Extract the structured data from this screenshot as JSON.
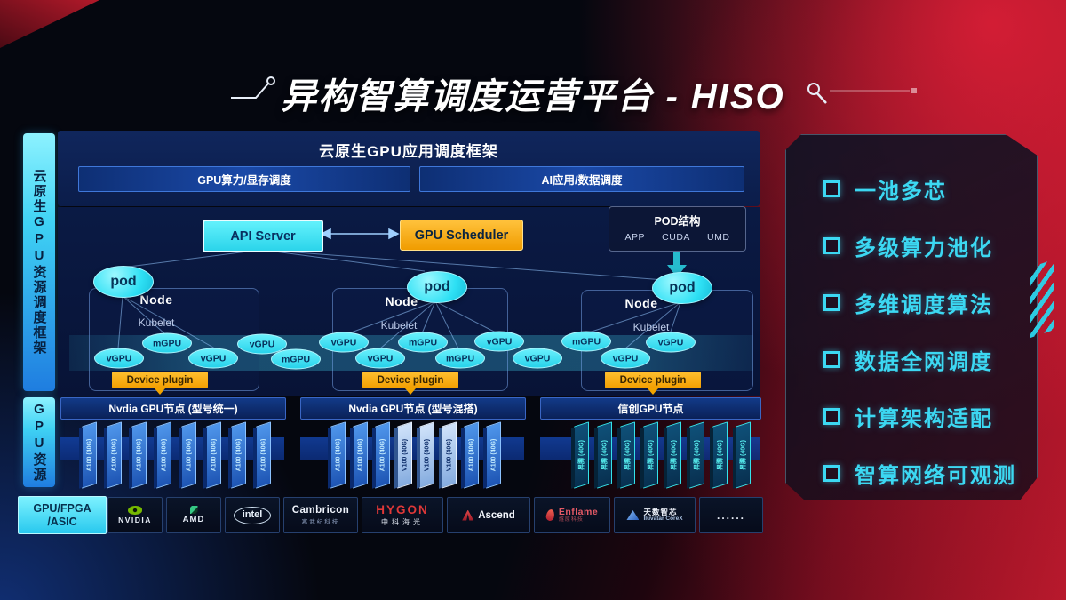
{
  "title": "异构智算调度运营平台 - HISO",
  "sidebar": {
    "top_label": "云原生GPU资源调度框架",
    "bottom_label": "GPU资源"
  },
  "framework": {
    "header": "云原生GPU应用调度框架",
    "bars": [
      "GPU算力/显存调度",
      "AI应用/数据调度"
    ],
    "api_server_label": "API Server",
    "gpu_scheduler_label": "GPU Scheduler",
    "pod_struct": {
      "title": "POD结构",
      "columns": [
        "APP",
        "CUDA",
        "UMD"
      ]
    },
    "node_label": "Node",
    "kubelet_label": "Kubelet",
    "pod_label": "pod",
    "device_plugin_label": "Device plugin",
    "gpu_units": [
      "vGPU",
      "mGPU",
      "vGPU",
      "vGPU",
      "mGPU",
      "vGPU",
      "vGPU",
      "mGPU",
      "mGPU",
      "vGPU",
      "vGPU",
      "mGPU",
      "vGPU",
      "vGPU"
    ]
  },
  "gpu_rows": [
    {
      "label": "Nvdia GPU节点 (型号统一)",
      "cards": [
        {
          "label": "A100 (40G)",
          "variant": "a100"
        },
        {
          "label": "A100 (40G)",
          "variant": "a100"
        },
        {
          "label": "A100 (40G)",
          "variant": "a100"
        },
        {
          "label": "A100 (40G)",
          "variant": "a100"
        },
        {
          "label": "A100 (40G)",
          "variant": "a100"
        },
        {
          "label": "A100 (40G)",
          "variant": "a100"
        },
        {
          "label": "A100 (40G)",
          "variant": "a100"
        },
        {
          "label": "A100 (40G)",
          "variant": "a100"
        }
      ]
    },
    {
      "label": "Nvdia GPU节点 (型号混搭)",
      "cards": [
        {
          "label": "A100 (40G)",
          "variant": "a100"
        },
        {
          "label": "A100 (40G)",
          "variant": "a100"
        },
        {
          "label": "A100 (40G)",
          "variant": "a100"
        },
        {
          "label": "V100 (40G)",
          "variant": "v100"
        },
        {
          "label": "V100 (40G)",
          "variant": "v100"
        },
        {
          "label": "V100 (40G)",
          "variant": "v100"
        },
        {
          "label": "A100 (40G)",
          "variant": "a100"
        },
        {
          "label": "A100 (40G)",
          "variant": "a100"
        }
      ]
    },
    {
      "label": "信创GPU节点",
      "cards": [
        {
          "label": "昇腾 (40G)",
          "variant": "xc"
        },
        {
          "label": "昇腾 (40G)",
          "variant": "xc"
        },
        {
          "label": "昇腾 (40G)",
          "variant": "xc"
        },
        {
          "label": "昇腾 (40G)",
          "variant": "xc"
        },
        {
          "label": "昇腾 (40G)",
          "variant": "xc"
        },
        {
          "label": "昇腾 (40G)",
          "variant": "xc"
        },
        {
          "label": "昇腾 (40G)",
          "variant": "xc"
        },
        {
          "label": "昇腾 (40G)",
          "variant": "xc"
        }
      ]
    }
  ],
  "vendors": {
    "first": [
      "GPU/FPGA",
      "/ASIC"
    ],
    "logos": [
      {
        "id": "nvidia",
        "text": "NVIDIA"
      },
      {
        "id": "amd",
        "text": "AMD"
      },
      {
        "id": "intel",
        "text": "intel"
      },
      {
        "id": "cambricon",
        "text": "Cambricon",
        "sub": "寒武纪科技"
      },
      {
        "id": "hygon",
        "text": "HYGON",
        "sub": "中科海光"
      },
      {
        "id": "ascend",
        "text": "Ascend"
      },
      {
        "id": "enflame",
        "text": "Enflame",
        "sub": "燧原科技"
      },
      {
        "id": "iluvatar",
        "text": "天数智芯",
        "sub": "Iluvatar CoreX"
      },
      {
        "id": "more",
        "text": "......"
      }
    ]
  },
  "features": {
    "items": [
      "一池多芯",
      "多级算力池化",
      "多维调度算法",
      "数据全网调度",
      "计算架构适配",
      "智算网络可观测"
    ]
  },
  "colors": {
    "accent_cyan": "#3cd8f2",
    "accent_orange": "#f2a400",
    "accent_red": "#b81a2c",
    "card_blue": "#2f6fd4",
    "nvidia_green": "#76b900"
  }
}
